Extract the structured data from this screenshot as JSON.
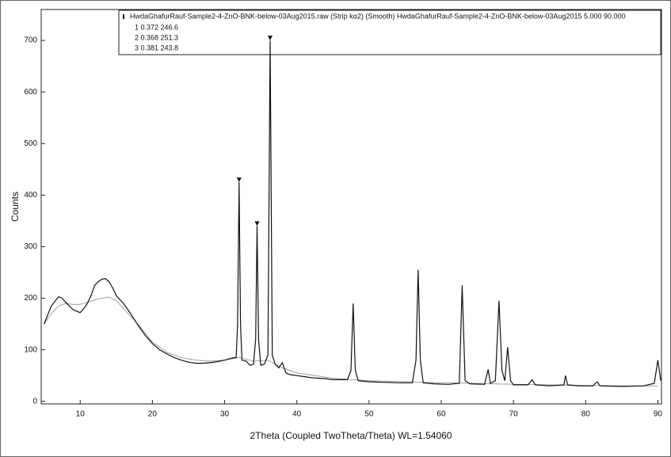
{
  "chart_data": {
    "type": "line",
    "xlabel": "2Theta (Coupled TwoTheta/Theta) WL=1.54060",
    "ylabel": "Counts",
    "xlim": [
      4.6,
      90.5
    ],
    "ylim": [
      -5,
      760
    ],
    "xticks": [
      10,
      20,
      30,
      40,
      50,
      60,
      70,
      80,
      90
    ],
    "yticks": [
      0,
      100,
      200,
      300,
      400,
      500,
      600,
      700
    ],
    "legend_entries": [
      "1 0.372 246.6",
      "2 0.368 251.3",
      "3 0.381 243.8"
    ],
    "series": [
      {
        "name": "HwdaGhafurRauf-Sample2-4-ZnO-BNK-below-03Aug2015.raw (Strip kα2) (Smooth) HwdaGhafurRauf-Sample2-4-ZnO-BNK-below-03Aug2015 5.000 90.000",
        "color": "#111111",
        "x": [
          5,
          6,
          7,
          7.5,
          8,
          8.5,
          9,
          9.5,
          10,
          10.5,
          11,
          11.5,
          12,
          12.5,
          13,
          13.5,
          14,
          14.5,
          15,
          16,
          17,
          18,
          19,
          20,
          21,
          22,
          23,
          24,
          25,
          26,
          27,
          28,
          29,
          30,
          31,
          31.6,
          31.8,
          32,
          32.2,
          32.4,
          33,
          33.5,
          34,
          34.3,
          34.5,
          34.7,
          35,
          35.5,
          36,
          36.3,
          36.6,
          37,
          37.5,
          38,
          38.5,
          39,
          40,
          41,
          42,
          43,
          44,
          45,
          46,
          47,
          47.5,
          47.8,
          48.1,
          48.5,
          50,
          52,
          54,
          56,
          56.5,
          56.8,
          57.1,
          57.5,
          59,
          61,
          62.5,
          62.9,
          63.3,
          64,
          66,
          66.5,
          66.8,
          67.5,
          68,
          68.4,
          68.8,
          69.2,
          69.6,
          70,
          72,
          72.6,
          73,
          75,
          77,
          77.2,
          77.5,
          79,
          81,
          81.6,
          82,
          85,
          88,
          89.5,
          90,
          90.4
        ],
        "values": [
          150,
          185,
          203,
          200,
          192,
          185,
          178,
          175,
          172,
          180,
          190,
          205,
          225,
          232,
          237,
          238,
          232,
          220,
          205,
          190,
          170,
          148,
          128,
          112,
          100,
          92,
          85,
          80,
          76,
          74,
          74,
          75,
          77,
          80,
          84,
          85,
          150,
          425,
          150,
          80,
          78,
          70,
          72,
          120,
          340,
          120,
          70,
          72,
          90,
          700,
          90,
          72,
          65,
          75,
          55,
          52,
          50,
          48,
          46,
          45,
          44,
          42,
          42,
          42,
          60,
          190,
          60,
          40,
          38,
          37,
          36,
          36,
          80,
          255,
          80,
          36,
          34,
          33,
          35,
          225,
          40,
          34,
          33,
          62,
          35,
          40,
          195,
          60,
          40,
          105,
          40,
          32,
          32,
          42,
          32,
          30,
          32,
          50,
          32,
          30,
          30,
          38,
          30,
          29,
          30,
          35,
          80,
          40
        ]
      },
      {
        "name": "Smooth",
        "color": "#a0a0a0",
        "x": [
          5,
          6,
          7,
          8,
          9,
          10,
          11,
          12,
          13,
          14,
          15,
          16,
          18,
          20,
          22,
          24,
          26,
          28,
          30,
          32,
          34,
          36,
          38,
          40,
          45,
          50,
          55,
          60,
          65,
          70,
          75,
          80,
          85,
          90
        ],
        "values": [
          150,
          170,
          185,
          190,
          188,
          188,
          192,
          197,
          200,
          202,
          195,
          180,
          150,
          115,
          95,
          85,
          80,
          78,
          80,
          85,
          78,
          80,
          65,
          55,
          45,
          40,
          38,
          36,
          35,
          33,
          32,
          31,
          30,
          30
        ]
      }
    ],
    "peak_markers": {
      "x": [
        32,
        34.5,
        36.3
      ],
      "values": [
        425,
        340,
        700
      ]
    }
  }
}
